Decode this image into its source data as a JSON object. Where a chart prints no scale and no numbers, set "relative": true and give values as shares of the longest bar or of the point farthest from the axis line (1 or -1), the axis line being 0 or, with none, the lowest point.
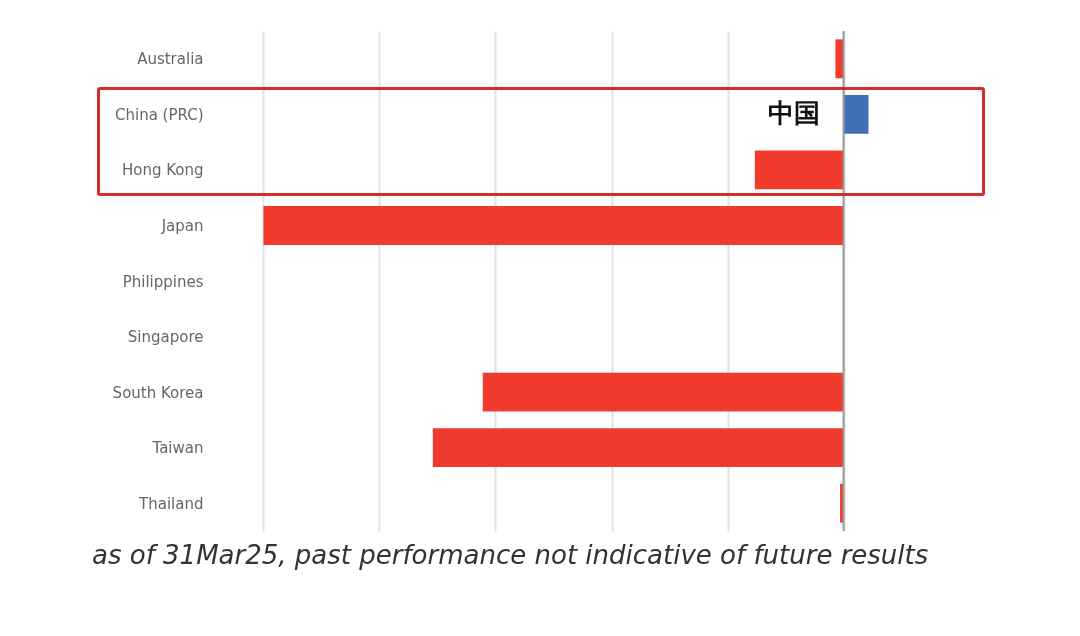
{
  "chart_data": {
    "type": "bar",
    "orientation": "horizontal",
    "relative": true,
    "grid": "x",
    "categories": [
      "Australia",
      "China (PRC)",
      "Hong Kong",
      "Japan",
      "Philippines",
      "Singapore",
      "South Korea",
      "Taiwan",
      "Thailand"
    ],
    "values": [
      -0.014,
      0.043,
      -0.153,
      -1,
      0,
      0,
      -0.622,
      -0.708,
      -0.006
    ],
    "colors": [
      "#f03a2e",
      "#3f6fb5",
      "#f03a2e",
      "#f03a2e",
      "#f03a2e",
      "#f03a2e",
      "#f03a2e",
      "#f03a2e",
      "#f03a2e"
    ],
    "annotations": [
      {
        "text": "中国",
        "x": 0,
        "y": "China (PRC)"
      },
      "as of 31Mar25, past performance not indicative of future results"
    ]
  }
}
